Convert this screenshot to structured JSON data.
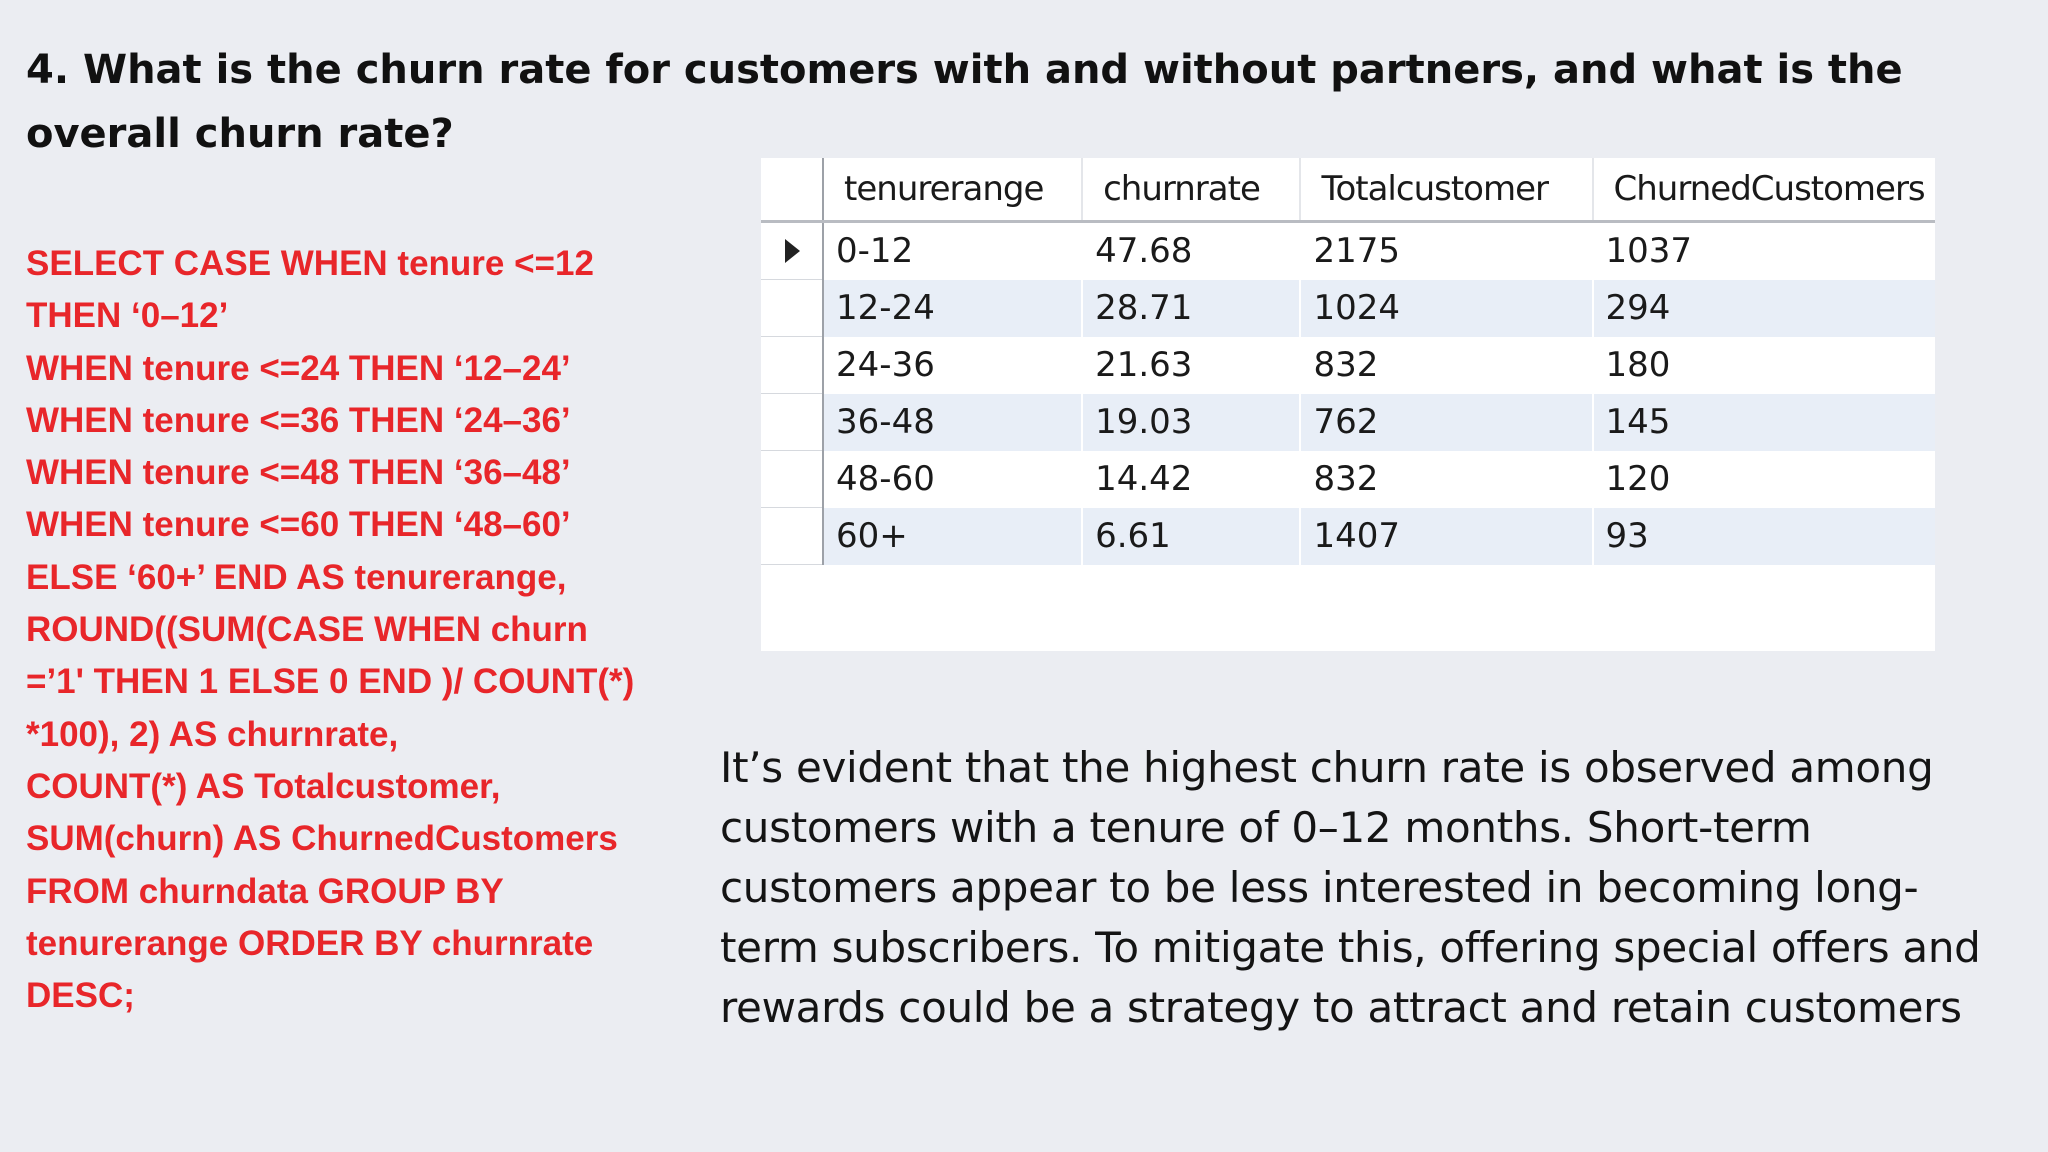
{
  "title": "4. What is the churn rate for customers with and without partners, and what is the overall churn rate?",
  "sql_lines": [
    "SELECT CASE WHEN tenure <=12",
    "THEN ‘0–12’",
    "WHEN tenure <=24 THEN ‘12–24’",
    "WHEN tenure <=36 THEN ‘24–36’",
    "WHEN tenure <=48 THEN ‘36–48’",
    "WHEN tenure <=60 THEN ‘48–60’",
    "ELSE ‘60+’ END AS tenurerange,",
    "ROUND((SUM(CASE WHEN churn",
    "=’1' THEN 1 ELSE 0 END )/ COUNT(*)",
    "*100), 2) AS churnrate,",
    "COUNT(*) AS Totalcustomer,",
    "SUM(churn) AS ChurnedCustomers",
    "FROM churndata GROUP BY",
    "tenurerange ORDER BY churnrate",
    "DESC;"
  ],
  "result_grid": {
    "columns": [
      "tenurerange",
      "churnrate",
      "Totalcustomer",
      "ChurnedCustomers"
    ],
    "rows": [
      {
        "tenurerange": "0-12",
        "churnrate": "47.68",
        "totalcustomer": "2175",
        "churnedcustomers": "1037"
      },
      {
        "tenurerange": "12-24",
        "churnrate": "28.71",
        "totalcustomer": "1024",
        "churnedcustomers": "294"
      },
      {
        "tenurerange": "24-36",
        "churnrate": "21.63",
        "totalcustomer": "832",
        "churnedcustomers": "180"
      },
      {
        "tenurerange": "36-48",
        "churnrate": "19.03",
        "totalcustomer": "762",
        "churnedcustomers": "145"
      },
      {
        "tenurerange": "48-60",
        "churnrate": "14.42",
        "totalcustomer": "832",
        "churnedcustomers": "120"
      },
      {
        "tenurerange": "60+",
        "churnrate": "6.61",
        "totalcustomer": "1407",
        "churnedcustomers": "93"
      }
    ],
    "current_row_icon": "row-pointer-icon"
  },
  "insight": "It’s evident that the highest churn rate is observed among customers with a tenure of 0–12 months. Short-term customers appear to be less interested in becoming long-term subscribers. To mitigate this, offering special offers and rewards could be a strategy to attract and retain customers"
}
